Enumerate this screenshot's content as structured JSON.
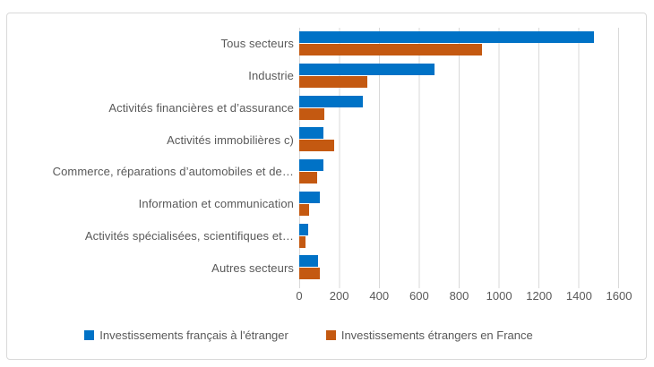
{
  "chart_data": {
    "type": "bar",
    "orientation": "horizontal",
    "title": "",
    "categories": [
      "Tous secteurs",
      "Industrie",
      "Activités financières et d’assurance",
      "Activités immobilières c)",
      "Commerce, réparations d’automobiles et de…",
      "Information et communication",
      "Activités spécialisées, scientifiques et…",
      "Autres secteurs"
    ],
    "series": [
      {
        "name": "Investissements français à l'étranger",
        "color": "#0072C6",
        "values": [
          1480,
          680,
          320,
          120,
          120,
          105,
          45,
          95
        ]
      },
      {
        "name": "Investissements étrangers en France",
        "color": "#C45911",
        "values": [
          915,
          340,
          125,
          175,
          90,
          50,
          30,
          105
        ]
      }
    ],
    "xlim": [
      0,
      1600
    ],
    "x_ticks": [
      0,
      200,
      400,
      600,
      800,
      1000,
      1200,
      1400,
      1600
    ],
    "grid": "vertical-only",
    "legend_position": "bottom"
  },
  "colors": {
    "text": "#595959",
    "gridline": "#D9D9D9",
    "frame_border": "#D9D9D9",
    "background": "#FFFFFF"
  }
}
